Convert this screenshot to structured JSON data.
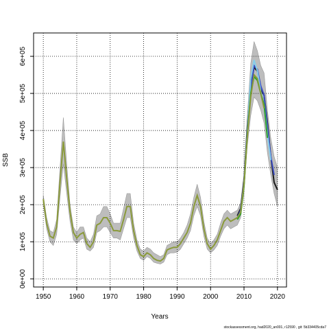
{
  "chart_data": {
    "type": "line",
    "x_label": "Years",
    "y_label": "SSB",
    "footer": "stockassessment.org, had2020_an001, r12590 , git: 5b334405cda7",
    "xlim": [
      1947.1,
      2022.7
    ],
    "xticks": [
      1950,
      1960,
      1970,
      1980,
      1990,
      2000,
      2010,
      2020
    ],
    "ylim": [
      -22000,
      663000
    ],
    "yticks": [
      {
        "value": 0,
        "label": "0e+00"
      },
      {
        "value": 100000,
        "label": "1e+05"
      },
      {
        "value": 200000,
        "label": "2e+05"
      },
      {
        "value": 300000,
        "label": "3e+05"
      },
      {
        "value": 400000,
        "label": "4e+05"
      },
      {
        "value": 500000,
        "label": "5e+05"
      },
      {
        "value": 600000,
        "label": "6e+05"
      }
    ],
    "grid": true,
    "band": {
      "color": "#bdbdbd",
      "x": [
        1950,
        1951,
        1952,
        1953,
        1954,
        1955,
        1956,
        1957,
        1958,
        1959,
        1960,
        1961,
        1962,
        1963,
        1964,
        1965,
        1966,
        1967,
        1968,
        1969,
        1970,
        1971,
        1972,
        1973,
        1974,
        1975,
        1976,
        1977,
        1978,
        1979,
        1980,
        1981,
        1982,
        1983,
        1984,
        1985,
        1986,
        1987,
        1988,
        1989,
        1990,
        1991,
        1992,
        1993,
        1994,
        1995,
        1996,
        1997,
        1998,
        1999,
        2000,
        2001,
        2002,
        2003,
        2004,
        2005,
        2006,
        2007,
        2008,
        2009,
        2010,
        2011,
        2012,
        2013,
        2014,
        2015,
        2016,
        2017,
        2018,
        2019,
        2020
      ],
      "upper": [
        225000,
        165000,
        130000,
        125000,
        160000,
        300000,
        435000,
        310000,
        200000,
        140000,
        125000,
        140000,
        140000,
        110000,
        100000,
        120000,
        170000,
        175000,
        195000,
        195000,
        175000,
        150000,
        150000,
        150000,
        190000,
        230000,
        230000,
        150000,
        105000,
        80000,
        75000,
        85000,
        80000,
        70000,
        65000,
        60000,
        65000,
        90000,
        95000,
        100000,
        100000,
        110000,
        125000,
        145000,
        175000,
        220000,
        255000,
        220000,
        155000,
        110000,
        95000,
        105000,
        120000,
        150000,
        175000,
        185000,
        175000,
        180000,
        185000,
        205000,
        285000,
        440000,
        580000,
        640000,
        615000,
        575000,
        555000,
        455000,
        380000,
        330000,
        300000
      ],
      "lower": [
        200000,
        135000,
        100000,
        90000,
        120000,
        220000,
        310000,
        230000,
        155000,
        105000,
        95000,
        105000,
        110000,
        80000,
        75000,
        85000,
        125000,
        130000,
        140000,
        140000,
        125000,
        110000,
        110000,
        105000,
        135000,
        165000,
        165000,
        110000,
        75000,
        55000,
        50000,
        60000,
        55000,
        45000,
        42000,
        40000,
        45000,
        65000,
        70000,
        70000,
        72000,
        80000,
        95000,
        110000,
        130000,
        170000,
        195000,
        170000,
        115000,
        80000,
        70000,
        78000,
        90000,
        115000,
        135000,
        145000,
        135000,
        140000,
        145000,
        165000,
        235000,
        360000,
        440000,
        490000,
        480000,
        455000,
        420000,
        340000,
        280000,
        230000,
        195000
      ]
    },
    "series": [
      {
        "color": "#1a1a1a",
        "x": [
          2008,
          2009,
          2010,
          2011,
          2012,
          2013,
          2014,
          2015,
          2016,
          2017,
          2018,
          2019,
          2020
        ],
        "values": [
          170000,
          190000,
          265000,
          410000,
          520000,
          570000,
          560000,
          510000,
          495000,
          420000,
          330000,
          260000,
          240000
        ]
      },
      {
        "color": "#3b4cc0",
        "x": [
          2008,
          2009,
          2010,
          2011,
          2012,
          2013,
          2014,
          2015,
          2016,
          2017,
          2018,
          2019
        ],
        "values": [
          165000,
          185000,
          260000,
          400000,
          510000,
          575000,
          565000,
          520000,
          495000,
          410000,
          330000,
          280000
        ]
      },
      {
        "color": "#87ceeb",
        "x": [
          2008,
          2009,
          2010,
          2011,
          2012,
          2013,
          2014,
          2015,
          2016,
          2017,
          2018
        ],
        "values": [
          165000,
          180000,
          255000,
          395000,
          540000,
          590000,
          560000,
          505000,
          470000,
          390000,
          320000
        ]
      },
      {
        "color": "#2ca02c",
        "x": [
          2008,
          2009,
          2010,
          2011,
          2012,
          2013,
          2014,
          2015,
          2016,
          2017
        ],
        "values": [
          160000,
          175000,
          250000,
          390000,
          500000,
          545000,
          535000,
          500000,
          470000,
          380000
        ]
      },
      {
        "color": "#8a9a3a",
        "x": [
          1950,
          1951,
          1952,
          1953,
          1954,
          1955,
          1956,
          1957,
          1958,
          1959,
          1960,
          1961,
          1962,
          1963,
          1964,
          1965,
          1966,
          1967,
          1968,
          1969,
          1970,
          1971,
          1972,
          1973,
          1974,
          1975,
          1976,
          1977,
          1978,
          1979,
          1980,
          1981,
          1982,
          1983,
          1984,
          1985,
          1986,
          1987,
          1988,
          1989,
          1990,
          1991,
          1992,
          1993,
          1994,
          1995,
          1996,
          1997,
          1998,
          1999,
          2000,
          2001,
          2002,
          2003,
          2004,
          2005,
          2006,
          2007,
          2008,
          2009,
          2010,
          2011,
          2012,
          2013,
          2014,
          2015,
          2016
        ],
        "values": [
          215000,
          150000,
          115000,
          110000,
          140000,
          260000,
          370000,
          270000,
          180000,
          125000,
          110000,
          120000,
          125000,
          95000,
          85000,
          100000,
          145000,
          150000,
          165000,
          165000,
          150000,
          130000,
          130000,
          128000,
          160000,
          195000,
          195000,
          130000,
          90000,
          65000,
          60000,
          70000,
          65000,
          55000,
          50000,
          48000,
          55000,
          78000,
          82000,
          85000,
          85000,
          95000,
          110000,
          125000,
          150000,
          195000,
          225000,
          195000,
          135000,
          95000,
          80000,
          90000,
          105000,
          130000,
          155000,
          165000,
          155000,
          160000,
          165000,
          180000,
          255000,
          385000,
          490000,
          550000,
          540000,
          500000,
          460000
        ]
      }
    ]
  }
}
